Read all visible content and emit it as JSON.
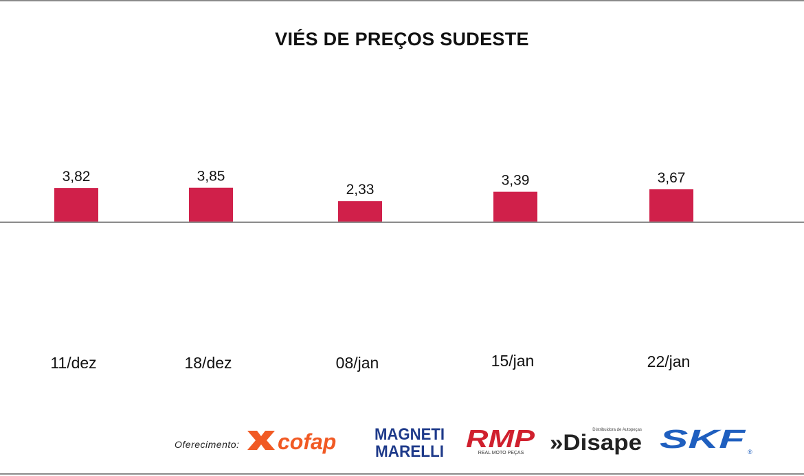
{
  "chart_data": {
    "type": "bar",
    "title": "VIÉS DE PREÇOS SUDESTE",
    "categories": [
      "11/dez",
      "18/dez",
      "08/jan",
      "15/jan",
      "22/jan"
    ],
    "values": [
      3.82,
      3.85,
      2.33,
      3.39,
      3.67
    ],
    "value_labels": [
      "3,82",
      "3,85",
      "2,33",
      "3,39",
      "3,67"
    ],
    "bar_color": "#d0204a",
    "grid": false,
    "legend": "none"
  },
  "sponsors": {
    "label": "Oferecimento:",
    "logos": [
      {
        "name": "cofap",
        "text": "cofap",
        "color": "#f15a24"
      },
      {
        "name": "magneti-marelli",
        "line1": "MAGNETI",
        "line2": "MARELLI",
        "color": "#1e3a8a"
      },
      {
        "name": "rmp",
        "text": "RMP",
        "subtitle": "REAL MOTO PEÇAS",
        "color": "#d0202e"
      },
      {
        "name": "disape",
        "text": "»Disape",
        "subtitle": "Distribuidora de Autopeças",
        "color": "#222222"
      },
      {
        "name": "skf",
        "text": "SKF",
        "mark": "®",
        "color": "#1f5fbf"
      }
    ]
  }
}
